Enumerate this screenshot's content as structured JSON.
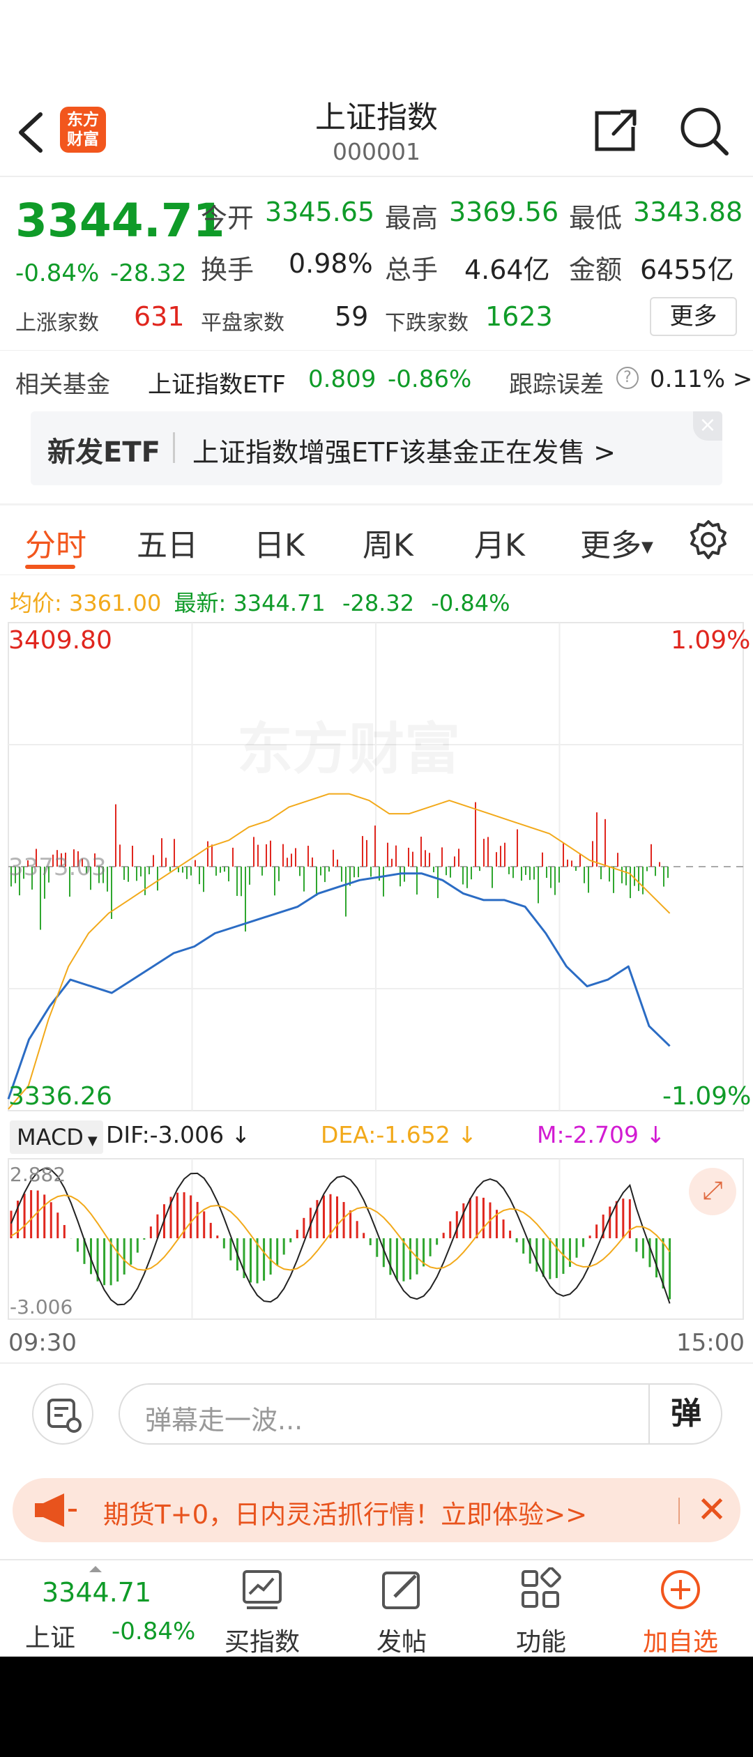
{
  "header": {
    "logo_text": "东方\n财富",
    "title": "上证指数",
    "code": "000001"
  },
  "quote": {
    "price": "3344.71",
    "change_pct": "-0.84%",
    "change_abs": "-28.32",
    "open_label": "今开",
    "open": "3345.65",
    "high_label": "最高",
    "high": "3369.56",
    "low_label": "最低",
    "low": "3343.88",
    "turnover_label": "换手",
    "turnover": "0.98%",
    "volume_label": "总手",
    "volume": "4.64亿",
    "amount_label": "金额",
    "amount": "6455亿",
    "up_label": "上涨家数",
    "up_count": "631",
    "flat_label": "平盘家数",
    "flat_count": "59",
    "down_label": "下跌家数",
    "down_count": "1623",
    "more_label": "更多"
  },
  "fund": {
    "label": "相关基金",
    "name": "上证指数ETF",
    "price": "0.809",
    "pct": "-0.86%",
    "tracking_label": "跟踪误差",
    "tracking_value": "0.11% >"
  },
  "etf_banner": {
    "tag": "新发ETF",
    "text": "上证指数增强ETF该基金正在发售  >",
    "close": "×"
  },
  "tabs": [
    "分时",
    "五日",
    "日K",
    "周K",
    "月K",
    "更多"
  ],
  "avg_row": {
    "avg_label": "均价:",
    "avg_value": "3361.00",
    "latest_label": "最新:",
    "latest_value": "3344.71",
    "latest_abs": "-28.32",
    "latest_pct": "-0.84%"
  },
  "chart": {
    "top_left": "3409.80",
    "top_right": "1.09%",
    "bottom_left": "3336.26",
    "bottom_right": "-1.09%",
    "mid_label": "3373.03",
    "watermark": "东方财富",
    "time_start": "09:30",
    "time_end": "15:00"
  },
  "macd": {
    "selector": "MACD",
    "dif": "DIF:-3.006",
    "dea": "DEA:-1.652",
    "m": "M:-2.709",
    "top": "2.882",
    "bottom": "-3.006"
  },
  "danmu": {
    "placeholder": "弹幕走一波...",
    "button": "弹"
  },
  "ad": {
    "text": "期货T+0，日内灵活抓行情！立即体验>>"
  },
  "nav": {
    "price": "3344.71",
    "name": "上证",
    "pct": "-0.84%",
    "items": [
      "买指数",
      "发帖",
      "功能",
      "加自选"
    ]
  },
  "chart_data": {
    "type": "line",
    "title": "",
    "ylim": [
      3336.26,
      3409.8
    ],
    "x_range": [
      "09:30",
      "15:00"
    ],
    "series": [
      {
        "values": [
          3338,
          3347,
          3352,
          3356,
          3355,
          3354,
          3356,
          3358,
          3360,
          3361,
          3363,
          3364,
          3365,
          3366,
          3367,
          3369,
          3370,
          3371,
          3371.5,
          3372,
          3372,
          3371,
          3369,
          3368,
          3368,
          3367,
          3363,
          3358,
          3355,
          3356,
          3358,
          3349,
          3346
        ]
      },
      {
        "values": [
          3336.5,
          3340,
          3350,
          3358,
          3363,
          3366,
          3368,
          3370,
          3372,
          3374,
          3376,
          3377,
          3379,
          3380,
          3382,
          3383,
          3384,
          3384,
          3383,
          3381,
          3381,
          3382,
          3383,
          3382,
          3381,
          3380,
          3379,
          3378,
          3376,
          3374,
          3373,
          3372,
          3369,
          3366
        ]
      }
    ],
    "prev_close": 3373.03
  }
}
